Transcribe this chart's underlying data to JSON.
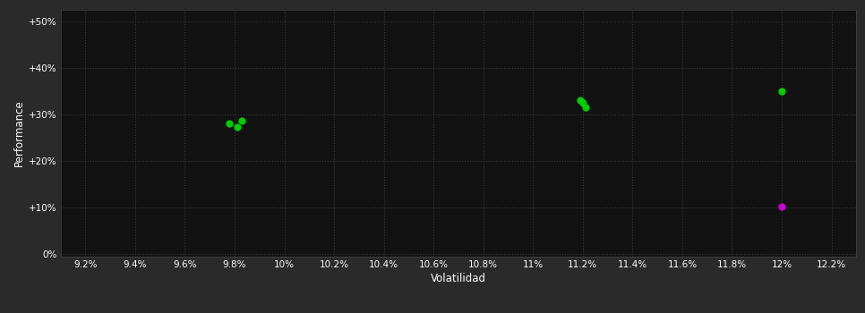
{
  "background_color": "#2a2a2a",
  "plot_bg_color": "#111111",
  "grid_color": "#3a3a3a",
  "text_color": "#ffffff",
  "xlabel": "Volatilidad",
  "ylabel": "Performance",
  "xlim": [
    0.091,
    0.123
  ],
  "ylim": [
    -0.005,
    0.525
  ],
  "xticks": [
    0.092,
    0.094,
    0.096,
    0.098,
    0.1,
    0.102,
    0.104,
    0.106,
    0.108,
    0.11,
    0.112,
    0.114,
    0.116,
    0.118,
    0.12,
    0.122
  ],
  "yticks": [
    0.0,
    0.1,
    0.2,
    0.3,
    0.4,
    0.5
  ],
  "xtick_labels": [
    "9.2%",
    "9.4%",
    "9.6%",
    "9.8%",
    "10%",
    "10.2%",
    "10.4%",
    "10.6%",
    "10.8%",
    "11%",
    "11.2%",
    "11.4%",
    "11.6%",
    "11.8%",
    "12%",
    "12.2%"
  ],
  "ytick_labels": [
    "0%",
    "+10%",
    "+20%",
    "+30%",
    "+40%",
    "+50%"
  ],
  "green_points": [
    [
      0.0978,
      0.28
    ],
    [
      0.0983,
      0.286
    ],
    [
      0.0981,
      0.273
    ],
    [
      0.112,
      0.324
    ],
    [
      0.1121,
      0.316
    ],
    [
      0.1119,
      0.33
    ],
    [
      0.12,
      0.35
    ]
  ],
  "magenta_points": [
    [
      0.12,
      0.103
    ]
  ],
  "green_color": "#00cc00",
  "magenta_color": "#cc00cc",
  "marker_size": 25
}
